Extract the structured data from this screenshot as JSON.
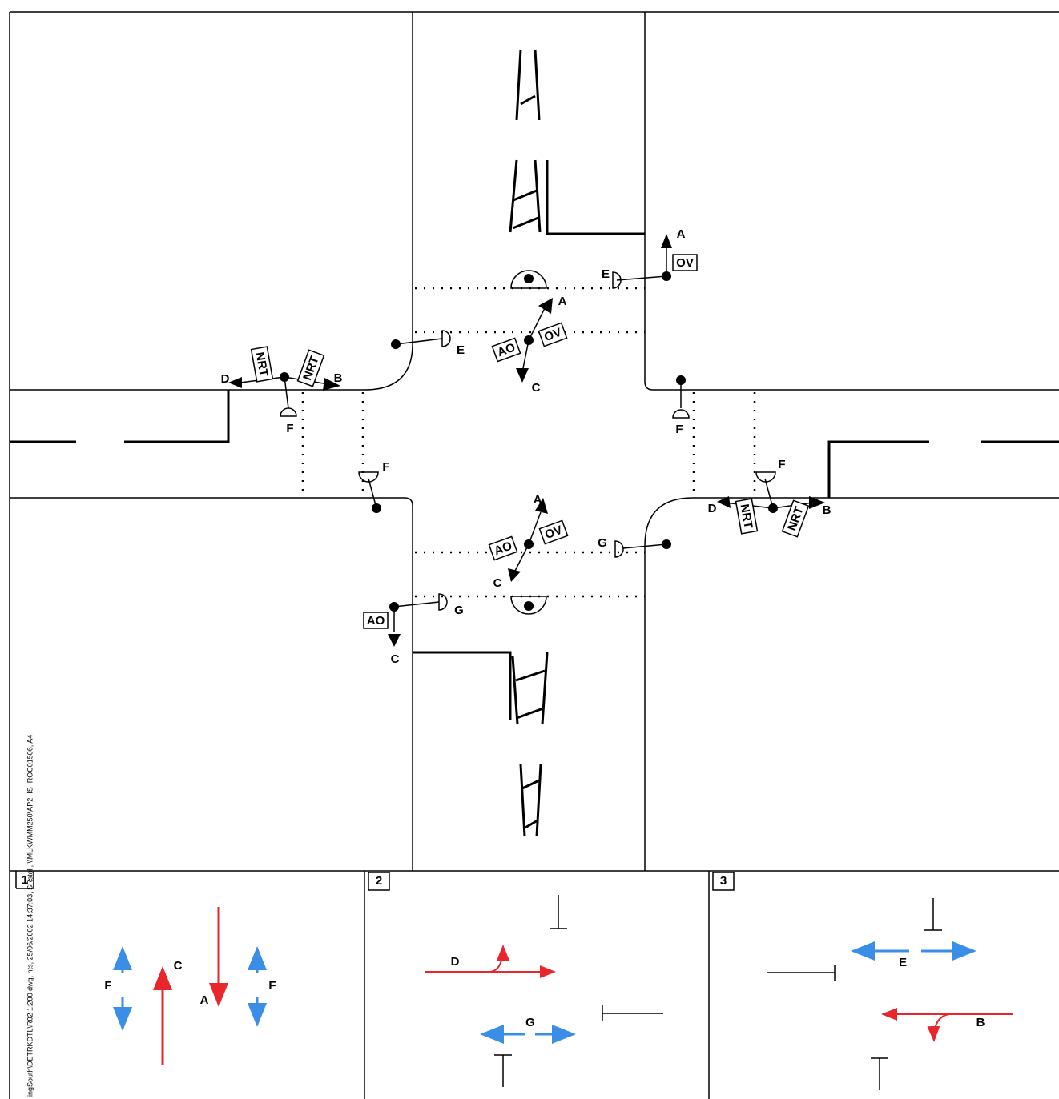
{
  "plan": {
    "labels": [
      "A",
      "OV",
      "E",
      "A",
      "OV",
      "AO",
      "E",
      "C",
      "D",
      "NRT",
      "NRT",
      "B",
      "F",
      "F",
      "F",
      "F",
      "D",
      "NRT",
      "NRT",
      "B",
      "A",
      "OV",
      "AO",
      "C",
      "G",
      "G",
      "AO",
      "C"
    ]
  },
  "phases": [
    {
      "number": "1",
      "labels": [
        "F",
        "C",
        "A",
        "F"
      ]
    },
    {
      "number": "2",
      "labels": [
        "D",
        "G"
      ]
    },
    {
      "number": "3",
      "labels": [
        "E",
        "B"
      ]
    }
  ],
  "drawing_ref": "ingSouth\\DETRKDTL\\R02 1:200 dwg, nts, 25/06/2002 14:37:03, SRstall, \\\\MLKWMM250\\AP2_IS_ROC01506, A4"
}
